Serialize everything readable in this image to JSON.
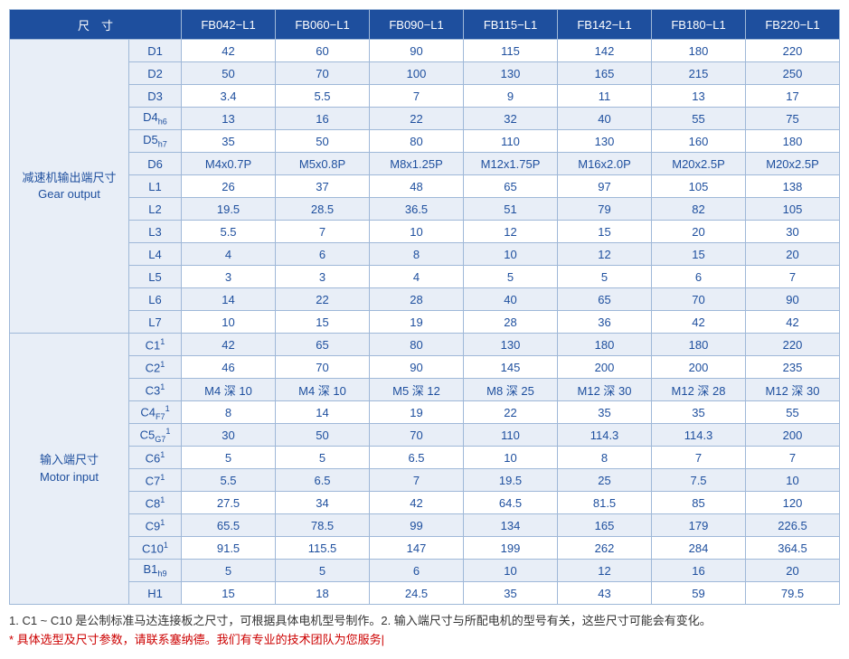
{
  "header": {
    "dimension_label": "尺　寸",
    "cols": [
      "FB042−L1",
      "FB060−L1",
      "FB090−L1",
      "FB115−L1",
      "FB142−L1",
      "FB180−L1",
      "FB220−L1"
    ]
  },
  "sections": [
    {
      "label_cn": "减速机输出端尺寸",
      "label_en": "Gear output",
      "rows": [
        {
          "param": "D1",
          "vals": [
            "42",
            "60",
            "90",
            "115",
            "142",
            "180",
            "220"
          ]
        },
        {
          "param": "D2",
          "vals": [
            "50",
            "70",
            "100",
            "130",
            "165",
            "215",
            "250"
          ]
        },
        {
          "param": "D3",
          "vals": [
            "3.4",
            "5.5",
            "7",
            "9",
            "11",
            "13",
            "17"
          ]
        },
        {
          "param": "D4",
          "sub": "h6",
          "vals": [
            "13",
            "16",
            "22",
            "32",
            "40",
            "55",
            "75"
          ]
        },
        {
          "param": "D5",
          "sub": "h7",
          "vals": [
            "35",
            "50",
            "80",
            "110",
            "130",
            "160",
            "180"
          ]
        },
        {
          "param": "D6",
          "vals": [
            "M4x0.7P",
            "M5x0.8P",
            "M8x1.25P",
            "M12x1.75P",
            "M16x2.0P",
            "M20x2.5P",
            "M20x2.5P"
          ]
        },
        {
          "param": "L1",
          "vals": [
            "26",
            "37",
            "48",
            "65",
            "97",
            "105",
            "138"
          ]
        },
        {
          "param": "L2",
          "vals": [
            "19.5",
            "28.5",
            "36.5",
            "51",
            "79",
            "82",
            "105"
          ]
        },
        {
          "param": "L3",
          "vals": [
            "5.5",
            "7",
            "10",
            "12",
            "15",
            "20",
            "30"
          ]
        },
        {
          "param": "L4",
          "vals": [
            "4",
            "6",
            "8",
            "10",
            "12",
            "15",
            "20"
          ]
        },
        {
          "param": "L5",
          "vals": [
            "3",
            "3",
            "4",
            "5",
            "5",
            "6",
            "7"
          ]
        },
        {
          "param": "L6",
          "vals": [
            "14",
            "22",
            "28",
            "40",
            "65",
            "70",
            "90"
          ]
        },
        {
          "param": "L7",
          "vals": [
            "10",
            "15",
            "19",
            "28",
            "36",
            "42",
            "42"
          ]
        }
      ]
    },
    {
      "label_cn": "输入端尺寸",
      "label_en": "Motor input",
      "rows": [
        {
          "param": "C1",
          "sup": "1",
          "vals": [
            "42",
            "65",
            "80",
            "130",
            "180",
            "180",
            "220"
          ]
        },
        {
          "param": "C2",
          "sup": "1",
          "vals": [
            "46",
            "70",
            "90",
            "145",
            "200",
            "200",
            "235"
          ]
        },
        {
          "param": "C3",
          "sup": "1",
          "vals": [
            "M4 深 10",
            "M4 深 10",
            "M5 深 12",
            "M8 深 25",
            "M12 深 30",
            "M12 深 28",
            "M12 深 30"
          ]
        },
        {
          "param": "C4",
          "sub": "F7",
          "sup": "1",
          "vals": [
            "8",
            "14",
            "19",
            "22",
            "35",
            "35",
            "55"
          ]
        },
        {
          "param": "C5",
          "sub": "G7",
          "sup": "1",
          "vals": [
            "30",
            "50",
            "70",
            "110",
            "114.3",
            "114.3",
            "200"
          ]
        },
        {
          "param": "C6",
          "sup": "1",
          "vals": [
            "5",
            "5",
            "6.5",
            "10",
            "8",
            "7",
            "7"
          ]
        },
        {
          "param": "C7",
          "sup": "1",
          "vals": [
            "5.5",
            "6.5",
            "7",
            "19.5",
            "25",
            "7.5",
            "10"
          ]
        },
        {
          "param": "C8",
          "sup": "1",
          "vals": [
            "27.5",
            "34",
            "42",
            "64.5",
            "81.5",
            "85",
            "120"
          ]
        },
        {
          "param": "C9",
          "sup": "1",
          "vals": [
            "65.5",
            "78.5",
            "99",
            "134",
            "165",
            "179",
            "226.5"
          ]
        },
        {
          "param": "C10",
          "sup": "1",
          "vals": [
            "91.5",
            "115.5",
            "147",
            "199",
            "262",
            "284",
            "364.5"
          ]
        },
        {
          "param": "B1",
          "sub": "h9",
          "vals": [
            "5",
            "5",
            "6",
            "10",
            "12",
            "16",
            "20"
          ]
        },
        {
          "param": "H1",
          "vals": [
            "15",
            "18",
            "24.5",
            "35",
            "43",
            "59",
            "79.5"
          ]
        }
      ]
    }
  ],
  "footnotes": {
    "line1": "1. C1 ~ C10 是公制标准马达连接板之尺寸，可根据具体电机型号制作。2. 输入端尺寸与所配电机的型号有关，这些尺寸可能会有变化。",
    "line2": "* 具体选型及尺寸参数，请联系塞纳德。我们有专业的技术团队为您服务|"
  }
}
